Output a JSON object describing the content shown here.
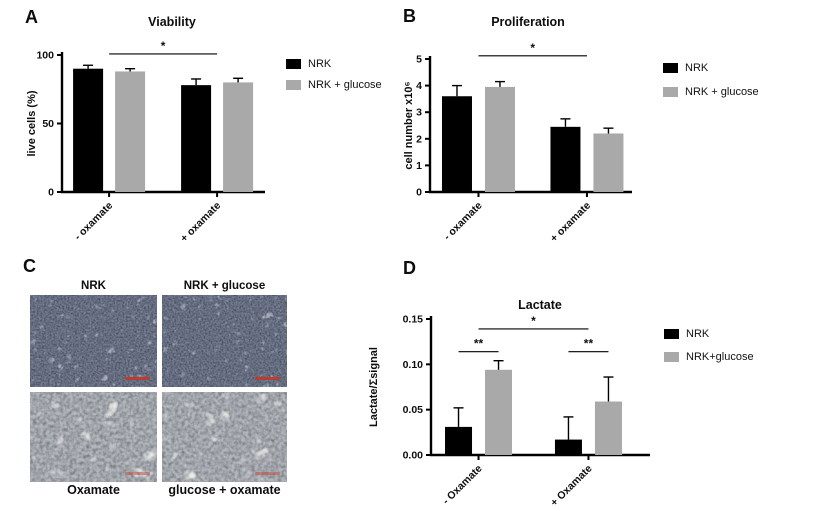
{
  "figure": {
    "panel_letters": {
      "A": "A",
      "B": "B",
      "C": "C",
      "D": "D"
    }
  },
  "colors": {
    "series_black": "#000000",
    "series_gray": "#a9a9a9",
    "axis": "#000000",
    "scalebar_red": "#c0392b"
  },
  "chart_data": [
    {
      "id": "viability",
      "panel": "A",
      "type": "bar",
      "title": "Viability",
      "ylabel": "live cells (%)",
      "categories": [
        "- oxamate",
        "+ oxamate"
      ],
      "series": [
        {
          "name": "NRK",
          "color": "#000000",
          "values": [
            90,
            78
          ],
          "errors_plus": [
            2.5,
            4.5
          ]
        },
        {
          "name": "NRK + glucose",
          "color": "#a9a9a9",
          "values": [
            88,
            80
          ],
          "errors_plus": [
            2,
            3
          ]
        }
      ],
      "ylim": [
        0,
        100
      ],
      "yticks": [
        "0",
        "50",
        "100"
      ],
      "grid": false,
      "legend": [
        "NRK",
        "NRK + glucose"
      ],
      "legend_position": "right",
      "significance": [
        {
          "label": "*",
          "from": {
            "group": 0
          },
          "to": {
            "group": 1
          },
          "y_value": 100.8
        }
      ]
    },
    {
      "id": "proliferation",
      "panel": "B",
      "type": "bar",
      "title": "Proliferation",
      "ylabel": "cell number x10⁶",
      "categories": [
        "- oxamate",
        "+ oxamate"
      ],
      "series": [
        {
          "name": "NRK",
          "color": "#000000",
          "values": [
            3.6,
            2.45
          ],
          "errors_plus": [
            0.4,
            0.3
          ]
        },
        {
          "name": "NRK + glucose",
          "color": "#a9a9a9",
          "values": [
            3.95,
            2.2
          ],
          "errors_plus": [
            0.2,
            0.2
          ]
        }
      ],
      "ylim": [
        0,
        5
      ],
      "yticks": [
        "0",
        "1",
        "2",
        "3",
        "4",
        "5"
      ],
      "grid": false,
      "legend": [
        "NRK",
        "NRK + glucose"
      ],
      "legend_position": "right",
      "significance": [
        {
          "label": "*",
          "from": {
            "group": 0
          },
          "to": {
            "group": 1
          },
          "y_value": 5.12
        }
      ]
    },
    {
      "id": "lactate",
      "panel": "D",
      "type": "bar",
      "title": "Lactate",
      "ylabel": "Lactate/Σsignal",
      "categories": [
        "- Oxamate",
        "+ Oxamate"
      ],
      "series": [
        {
          "name": "NRK",
          "color": "#000000",
          "values": [
            0.031,
            0.017
          ],
          "errors_plus": [
            0.021,
            0.025
          ]
        },
        {
          "name": "NRK+glucose",
          "color": "#a9a9a9",
          "values": [
            0.094,
            0.059
          ],
          "errors_plus": [
            0.01,
            0.027
          ]
        }
      ],
      "ylim": [
        0,
        0.15
      ],
      "yticks": [
        "0.00",
        "0.05",
        "0.10",
        "0.15"
      ],
      "grid": false,
      "legend": [
        "NRK",
        "NRK+glucose"
      ],
      "legend_position": "right",
      "significance": [
        {
          "label": "*",
          "from": {
            "group": 0
          },
          "to": {
            "group": 1
          },
          "y_value": 0.139
        },
        {
          "label": "**",
          "from": {
            "group": 0,
            "series": 0
          },
          "to": {
            "group": 0,
            "series": 1
          },
          "y_value": 0.114
        },
        {
          "label": "**",
          "from": {
            "group": 1,
            "series": 0
          },
          "to": {
            "group": 1,
            "series": 1
          },
          "y_value": 0.114
        }
      ]
    }
  ],
  "panel_c": {
    "images": [
      {
        "label": "NRK",
        "label_position": "top",
        "style": "dense_dark"
      },
      {
        "label": "NRK + glucose",
        "label_position": "top",
        "style": "dense_dark"
      },
      {
        "label": "Oxamate",
        "label_position": "bottom",
        "style": "sparse_light"
      },
      {
        "label": "glucose + oxamate",
        "label_position": "bottom",
        "style": "sparse_light"
      }
    ]
  }
}
